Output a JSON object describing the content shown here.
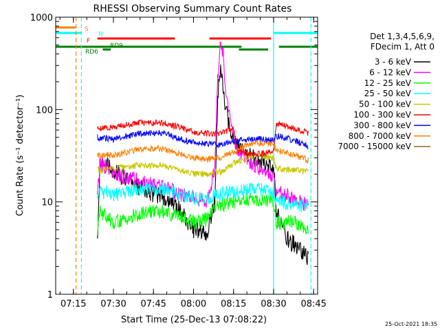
{
  "chart_data": {
    "type": "line",
    "title": "RHESSI Observing Summary Count Rates",
    "xlabel": "Start Time (25-Dec-13 07:08:22)",
    "ylabel": "Count Rate (s⁻¹ detector⁻¹)",
    "yscale": "log",
    "ylim": [
      1,
      1000
    ],
    "xlim": [
      "07:08:22",
      "08:46:30"
    ],
    "x_ticks": [
      "07:15",
      "07:30",
      "07:45",
      "08:00",
      "08:15",
      "08:30",
      "08:45"
    ],
    "y_ticks": [
      "1",
      "10",
      "100",
      "1000"
    ],
    "legend_header": [
      "Det 1,3,4,5,6,9,",
      "FDecim 1, Att 0"
    ],
    "timestamp": "25-Oct-2021 18:35",
    "series": [
      {
        "name": "3 - 6 keV",
        "color": "#000000",
        "points": [
          [
            "07:24",
            4
          ],
          [
            "07:25",
            28
          ],
          [
            "07:30",
            22
          ],
          [
            "07:35",
            17
          ],
          [
            "07:45",
            12
          ],
          [
            "07:50",
            11
          ],
          [
            "07:55",
            8
          ],
          [
            "08:00",
            5
          ],
          [
            "08:05",
            4.5
          ],
          [
            "08:08",
            10
          ],
          [
            "08:09",
            120
          ],
          [
            "08:10",
            280
          ],
          [
            "08:11",
            200
          ],
          [
            "08:12",
            100
          ],
          [
            "08:14",
            60
          ],
          [
            "08:16",
            40
          ],
          [
            "08:18",
            35
          ],
          [
            "08:22",
            30
          ],
          [
            "08:26",
            28
          ],
          [
            "08:30",
            25
          ],
          [
            "08:31",
            8
          ],
          [
            "08:35",
            4
          ],
          [
            "08:40",
            3
          ],
          [
            "08:43",
            2.5
          ]
        ]
      },
      {
        "name": "6 - 12 keV",
        "color": "#ff00ff",
        "points": [
          [
            "07:24",
            13
          ],
          [
            "07:25",
            26
          ],
          [
            "07:30",
            21
          ],
          [
            "07:35",
            18
          ],
          [
            "07:45",
            16
          ],
          [
            "07:50",
            14
          ],
          [
            "07:55",
            12
          ],
          [
            "08:00",
            11
          ],
          [
            "08:05",
            10
          ],
          [
            "08:08",
            22
          ],
          [
            "08:09",
            200
          ],
          [
            "08:10",
            550
          ],
          [
            "08:11",
            420
          ],
          [
            "08:12",
            150
          ],
          [
            "08:14",
            70
          ],
          [
            "08:16",
            40
          ],
          [
            "08:20",
            28
          ],
          [
            "08:26",
            22
          ],
          [
            "08:30",
            18
          ],
          [
            "08:31",
            13
          ],
          [
            "08:35",
            12
          ],
          [
            "08:40",
            10
          ],
          [
            "08:43",
            9
          ]
        ]
      },
      {
        "name": "12 - 25 keV",
        "color": "#00ff00",
        "points": [
          [
            "07:24",
            5
          ],
          [
            "07:25",
            8
          ],
          [
            "07:30",
            6
          ],
          [
            "07:40",
            7.5
          ],
          [
            "07:48",
            8
          ],
          [
            "07:55",
            7
          ],
          [
            "08:00",
            6
          ],
          [
            "08:05",
            6.5
          ],
          [
            "08:09",
            9
          ],
          [
            "08:15",
            10
          ],
          [
            "08:22",
            10.5
          ],
          [
            "08:30",
            10
          ],
          [
            "08:31",
            6
          ],
          [
            "08:38",
            6
          ],
          [
            "08:43",
            5
          ]
        ]
      },
      {
        "name": "25 - 50 keV",
        "color": "#00ffff",
        "points": [
          [
            "07:24",
            11
          ],
          [
            "07:25",
            13
          ],
          [
            "07:30",
            12
          ],
          [
            "07:40",
            13.5
          ],
          [
            "07:48",
            14
          ],
          [
            "07:55",
            12
          ],
          [
            "08:00",
            11
          ],
          [
            "08:05",
            11
          ],
          [
            "08:09",
            12
          ],
          [
            "08:17",
            13
          ],
          [
            "08:24",
            13.5
          ],
          [
            "08:30",
            13
          ],
          [
            "08:31",
            10
          ],
          [
            "08:38",
            9.5
          ],
          [
            "08:43",
            9
          ]
        ]
      },
      {
        "name": "50 - 100 keV",
        "color": "#c8c800",
        "points": [
          [
            "07:24",
            23
          ],
          [
            "07:25",
            22
          ],
          [
            "07:30",
            23
          ],
          [
            "07:40",
            25
          ],
          [
            "07:48",
            25
          ],
          [
            "07:55",
            22
          ],
          [
            "08:00",
            20
          ],
          [
            "08:05",
            20
          ],
          [
            "08:10",
            21
          ],
          [
            "08:15",
            26
          ],
          [
            "08:20",
            30
          ],
          [
            "08:25",
            31
          ],
          [
            "08:30",
            30
          ],
          [
            "08:31",
            23
          ],
          [
            "08:38",
            22
          ],
          [
            "08:43",
            21
          ]
        ]
      },
      {
        "name": "100 - 300 keV",
        "color": "#ff0000",
        "points": [
          [
            "07:24",
            62
          ],
          [
            "07:30",
            65
          ],
          [
            "07:40",
            72
          ],
          [
            "07:48",
            72
          ],
          [
            "07:55",
            64
          ],
          [
            "08:00",
            57
          ],
          [
            "08:05",
            55
          ],
          [
            "08:10",
            55
          ],
          [
            "08:15",
            62
          ],
          [
            "08:17",
            35
          ],
          [
            "08:22",
            33
          ],
          [
            "08:28",
            34
          ],
          [
            "08:30",
            35
          ],
          [
            "08:31",
            70
          ],
          [
            "08:38",
            62
          ],
          [
            "08:43",
            55
          ]
        ]
      },
      {
        "name": "300 - 800 keV",
        "color": "#0000ff",
        "points": [
          [
            "07:24",
            50
          ],
          [
            "07:30",
            48
          ],
          [
            "07:40",
            55
          ],
          [
            "07:48",
            56
          ],
          [
            "07:55",
            48
          ],
          [
            "08:00",
            44
          ],
          [
            "08:05",
            42
          ],
          [
            "08:10",
            42
          ],
          [
            "08:15",
            45
          ],
          [
            "08:20",
            47
          ],
          [
            "08:25",
            48
          ],
          [
            "08:30",
            46
          ],
          [
            "08:31",
            52
          ],
          [
            "08:38",
            46
          ],
          [
            "08:43",
            40
          ]
        ]
      },
      {
        "name": "800 - 7000 keV",
        "color": "#ff8000",
        "points": [
          [
            "07:24",
            32
          ],
          [
            "07:30",
            32
          ],
          [
            "07:40",
            37
          ],
          [
            "07:48",
            38
          ],
          [
            "07:55",
            33
          ],
          [
            "08:00",
            30
          ],
          [
            "08:05",
            29
          ],
          [
            "08:10",
            30
          ],
          [
            "08:15",
            35
          ],
          [
            "08:20",
            42
          ],
          [
            "08:25",
            44
          ],
          [
            "08:30",
            42
          ],
          [
            "08:31",
            36
          ],
          [
            "08:38",
            32
          ],
          [
            "08:43",
            28
          ]
        ]
      },
      {
        "name": "7000 - 15000 keV",
        "color": "#8b6914",
        "points": []
      }
    ],
    "flag_bars": [
      {
        "label": "S",
        "color": "#ff8000",
        "row": 0,
        "spans": [
          [
            "07:08:22",
            "07:16"
          ]
        ]
      },
      {
        "label": "N",
        "color": "#00ffff",
        "row": 1,
        "spans": [
          [
            "07:08:22",
            "07:18"
          ],
          [
            "08:30",
            "08:46:30"
          ]
        ]
      },
      {
        "label": "F",
        "color": "#ff0000",
        "row": 2,
        "spans": [
          [
            "07:24",
            "07:53"
          ],
          [
            "08:06",
            "08:29"
          ]
        ]
      },
      {
        "label": "RD9",
        "color": "#008000",
        "row": 3,
        "spans": []
      },
      {
        "label": "",
        "color": "#008000",
        "row": 3.5,
        "spans": [
          [
            "07:08:22",
            "08:18"
          ],
          [
            "08:32",
            "08:46:30"
          ]
        ]
      },
      {
        "label": "RD6",
        "color": "#008000",
        "row": 4,
        "spans": [
          [
            "07:26",
            "07:29"
          ],
          [
            "08:17",
            "08:28"
          ]
        ]
      }
    ],
    "vertical_markers": [
      {
        "time": "07:16",
        "color": "#ff8000",
        "style": "dashed"
      },
      {
        "time": "07:18",
        "color": "#00ffff",
        "style": "dashed"
      },
      {
        "time": "08:30",
        "color": "#00ffff",
        "style": "solid"
      },
      {
        "time": "08:44",
        "color": "#00ffff",
        "style": "dashed"
      }
    ],
    "grid": false,
    "legend_position": "right"
  }
}
